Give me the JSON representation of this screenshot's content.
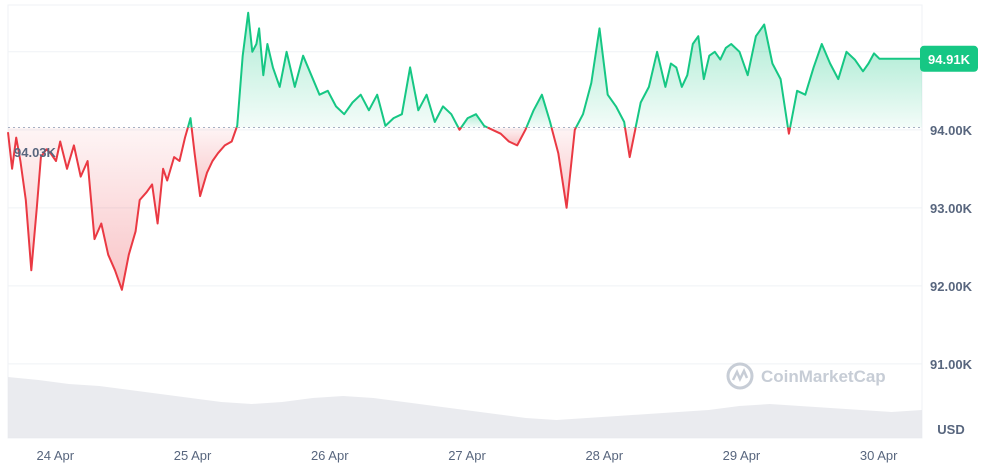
{
  "chart_data": {
    "type": "line",
    "baseline": 94030,
    "baseline_label": "94.03K",
    "current_label": "94.91K",
    "currency_label": "USD",
    "watermark": "CoinMarketCap",
    "x_ticks": [
      {
        "day": 0,
        "label": "24 Apr"
      },
      {
        "day": 1,
        "label": "25 Apr"
      },
      {
        "day": 2,
        "label": "26 Apr"
      },
      {
        "day": 3,
        "label": "27 Apr"
      },
      {
        "day": 4,
        "label": "28 Apr"
      },
      {
        "day": 5,
        "label": "29 Apr"
      },
      {
        "day": 6,
        "label": "30 Apr"
      }
    ],
    "y_ticks": [
      {
        "value": 94000,
        "label": "94.00K"
      },
      {
        "value": 93000,
        "label": "93.00K"
      },
      {
        "value": 92000,
        "label": "92.00K"
      },
      {
        "value": 91000,
        "label": "91.00K"
      }
    ],
    "xlim": [
      -0.33,
      6.33
    ],
    "ylim": [
      90050,
      95600
    ],
    "grid": true,
    "colors": {
      "up": "#16c784",
      "down": "#ea3943",
      "up_fill": "#16c784",
      "down_fill": "#ea3943",
      "grid": "#eff2f5",
      "volume": "#e6e8ec"
    },
    "x": [
      -0.33,
      -0.3,
      -0.27,
      -0.24,
      -0.2,
      -0.16,
      -0.12,
      -0.09,
      -0.05,
      -0.02,
      0.02,
      0.05,
      0.1,
      0.15,
      0.2,
      0.25,
      0.3,
      0.35,
      0.4,
      0.45,
      0.5,
      0.55,
      0.6,
      0.63,
      0.68,
      0.72,
      0.76,
      0.8,
      0.83,
      0.88,
      0.92,
      0.96,
      1.0,
      1.03,
      1.07,
      1.12,
      1.16,
      1.2,
      1.25,
      1.3,
      1.34,
      1.38,
      1.42,
      1.45,
      1.48,
      1.5,
      1.53,
      1.56,
      1.6,
      1.65,
      1.7,
      1.76,
      1.82,
      1.88,
      1.94,
      2.0,
      2.06,
      2.12,
      2.18,
      2.24,
      2.3,
      2.36,
      2.42,
      2.48,
      2.54,
      2.6,
      2.66,
      2.72,
      2.78,
      2.84,
      2.9,
      2.96,
      3.02,
      3.08,
      3.14,
      3.2,
      3.26,
      3.32,
      3.38,
      3.44,
      3.5,
      3.56,
      3.62,
      3.68,
      3.74,
      3.8,
      3.86,
      3.92,
      3.98,
      4.04,
      4.1,
      4.16,
      4.2,
      4.24,
      4.28,
      4.34,
      4.4,
      4.46,
      4.5,
      4.54,
      4.58,
      4.62,
      4.66,
      4.7,
      4.74,
      4.78,
      4.82,
      4.86,
      4.9,
      4.94,
      5.0,
      5.06,
      5.12,
      5.18,
      5.24,
      5.3,
      5.36,
      5.42,
      5.48,
      5.54,
      5.6,
      5.66,
      5.72,
      5.78,
      5.84,
      5.9,
      5.94,
      5.98,
      6.02,
      6.06,
      6.1,
      6.14,
      6.18,
      6.22,
      6.26,
      6.3,
      6.33
    ],
    "y": [
      93970,
      93500,
      93900,
      93600,
      93100,
      92200,
      93000,
      93650,
      93750,
      93700,
      93600,
      93850,
      93500,
      93800,
      93400,
      93600,
      92600,
      92800,
      92400,
      92200,
      91950,
      92400,
      92700,
      93100,
      93200,
      93300,
      92800,
      93500,
      93350,
      93650,
      93600,
      93900,
      94150,
      93700,
      93150,
      93450,
      93600,
      93700,
      93800,
      93850,
      94050,
      94950,
      95500,
      95000,
      95100,
      95300,
      94700,
      95100,
      94800,
      94550,
      95000,
      94550,
      94950,
      94700,
      94450,
      94500,
      94300,
      94200,
      94350,
      94450,
      94250,
      94450,
      94050,
      94150,
      94200,
      94800,
      94250,
      94450,
      94100,
      94300,
      94200,
      94000,
      94150,
      94200,
      94050,
      94000,
      93950,
      93850,
      93800,
      94000,
      94250,
      94450,
      94100,
      93700,
      93000,
      94000,
      94200,
      94600,
      95300,
      94450,
      94300,
      94100,
      93650,
      94000,
      94350,
      94550,
      95000,
      94550,
      94850,
      94800,
      94550,
      94700,
      95100,
      95200,
      94650,
      94950,
      95000,
      94900,
      95050,
      95100,
      95000,
      94700,
      95200,
      95350,
      94850,
      94650,
      93950,
      94500,
      94450,
      94800,
      95100,
      94850,
      94650,
      95000,
      94900,
      94750,
      94850,
      94980,
      94910,
      94910,
      94910,
      94910,
      94910,
      94910,
      94910,
      94910,
      94910
    ]
  }
}
